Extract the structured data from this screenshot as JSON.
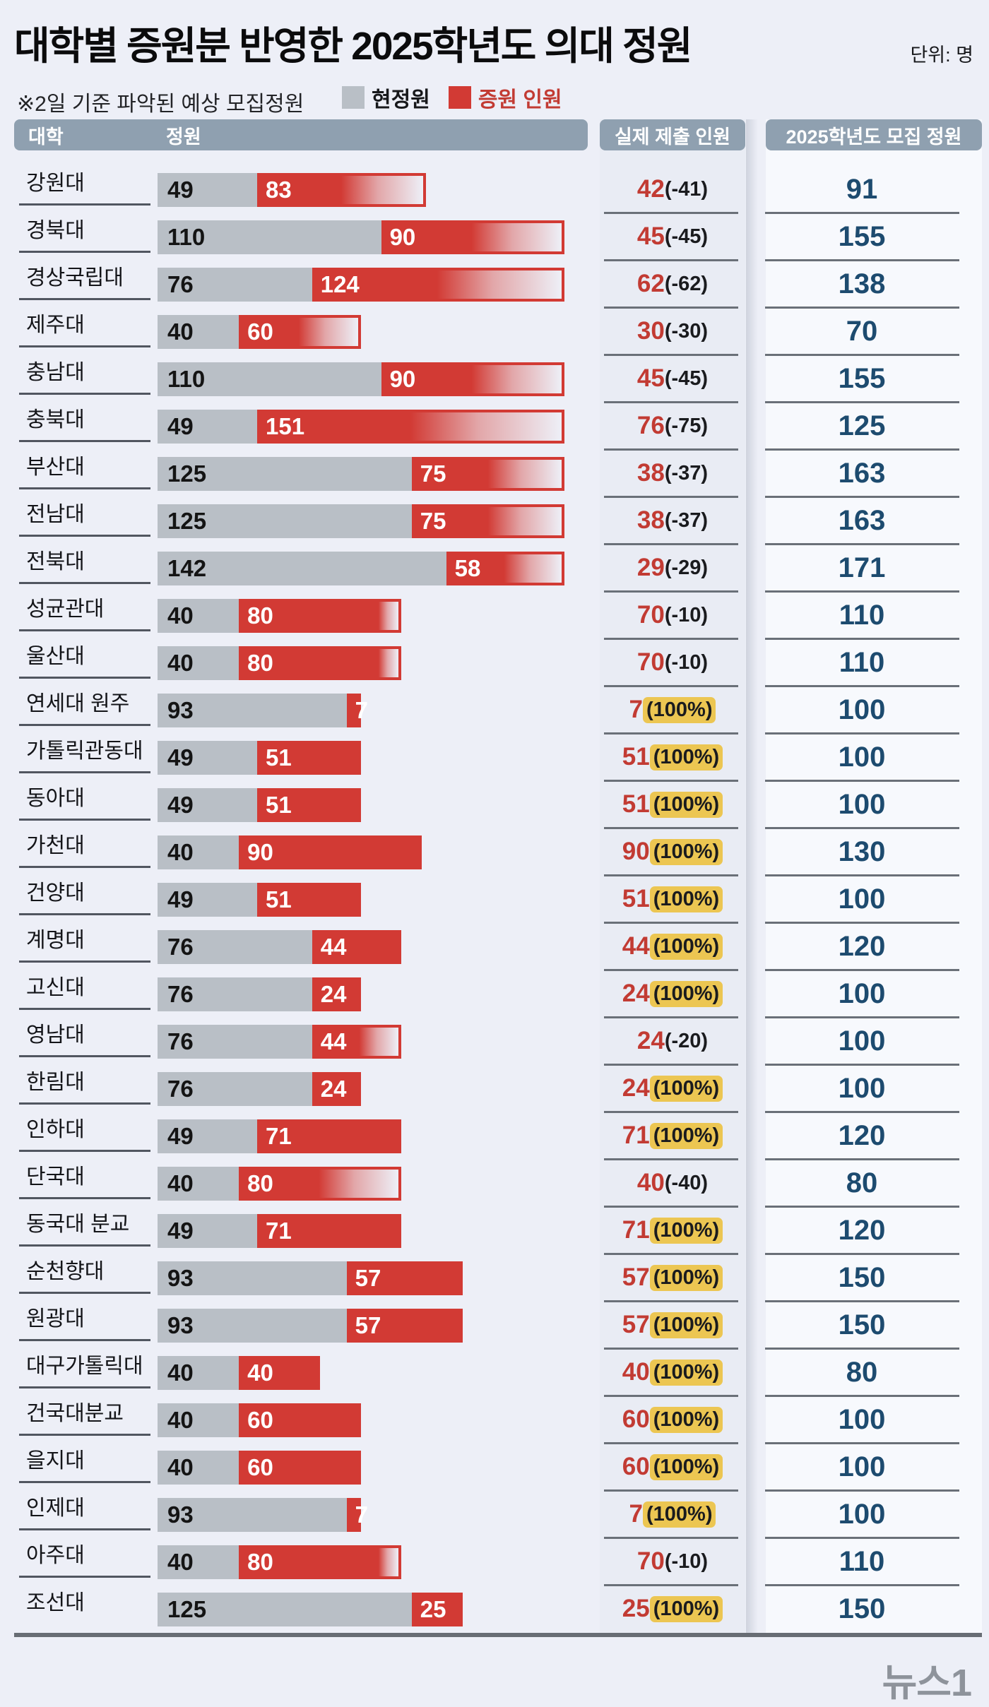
{
  "ui": {
    "title": "대학별 증원분 반영한 2025학년도 의대 정원",
    "unit_label": "단위: 명",
    "note": "※2일 기준 파악된 예상 모집정원",
    "legend": {
      "base_label": "현정원",
      "increase_label": "증원 인원"
    },
    "header": {
      "college": "대학",
      "quota": "정원",
      "submitted": "실제 제출 인원",
      "final": "2025학년도 모집 정원"
    },
    "footer_logo": "뉴스1"
  },
  "colors": {
    "background": "#edeff7",
    "header_band": "#8fa0b0",
    "bar_gray": "#b9bfc6",
    "bar_red": "#d23a34",
    "red_text": "#c23b33",
    "navy_number": "#1d4b6f",
    "highlight_yellow": "#ecc652"
  },
  "chart_data": {
    "type": "bar",
    "title": "대학별 증원분 반영한 2025학년도 의대 정원",
    "unit": "명",
    "legend": [
      "현정원",
      "증원 인원"
    ],
    "legend_position": "top",
    "x_max_units": 200,
    "categories": [
      "강원대",
      "경북대",
      "경상국립대",
      "제주대",
      "충남대",
      "충북대",
      "부산대",
      "전남대",
      "전북대",
      "성균관대",
      "울산대",
      "연세대 원주",
      "가톨릭관동대",
      "동아대",
      "가천대",
      "건양대",
      "계명대",
      "고신대",
      "영남대",
      "한림대",
      "인하대",
      "단국대",
      "동국대 분교",
      "순천향대",
      "원광대",
      "대구가톨릭대",
      "건국대분교",
      "을지대",
      "인제대",
      "아주대",
      "조선대"
    ],
    "series": [
      {
        "name": "현정원",
        "values": [
          49,
          110,
          76,
          40,
          110,
          49,
          125,
          125,
          142,
          40,
          40,
          93,
          49,
          49,
          40,
          49,
          76,
          76,
          76,
          76,
          49,
          40,
          49,
          93,
          93,
          40,
          40,
          40,
          93,
          40,
          125
        ]
      },
      {
        "name": "증원 인원",
        "values": [
          83,
          90,
          124,
          60,
          90,
          151,
          75,
          75,
          58,
          80,
          80,
          7,
          51,
          51,
          90,
          51,
          44,
          24,
          44,
          24,
          71,
          80,
          71,
          57,
          57,
          40,
          60,
          60,
          7,
          80,
          25
        ]
      },
      {
        "name": "실제 제출 인원",
        "values": [
          42,
          45,
          62,
          30,
          45,
          76,
          38,
          38,
          29,
          70,
          70,
          7,
          51,
          51,
          90,
          51,
          44,
          24,
          24,
          24,
          71,
          40,
          71,
          57,
          57,
          40,
          60,
          60,
          7,
          70,
          25
        ]
      },
      {
        "name": "2025학년도 모집 정원",
        "values": [
          91,
          155,
          138,
          70,
          155,
          125,
          163,
          163,
          171,
          110,
          110,
          100,
          100,
          100,
          130,
          100,
          120,
          100,
          100,
          100,
          120,
          80,
          120,
          150,
          150,
          80,
          100,
          100,
          100,
          110,
          150
        ]
      }
    ],
    "rows": [
      {
        "university": "강원대",
        "current_quota": 49,
        "increase": 83,
        "submitted": 42,
        "submitted_note": "(-41)",
        "full_pct": false,
        "final_2025": 91
      },
      {
        "university": "경북대",
        "current_quota": 110,
        "increase": 90,
        "submitted": 45,
        "submitted_note": "(-45)",
        "full_pct": false,
        "final_2025": 155
      },
      {
        "university": "경상국립대",
        "current_quota": 76,
        "increase": 124,
        "submitted": 62,
        "submitted_note": "(-62)",
        "full_pct": false,
        "final_2025": 138
      },
      {
        "university": "제주대",
        "current_quota": 40,
        "increase": 60,
        "submitted": 30,
        "submitted_note": "(-30)",
        "full_pct": false,
        "final_2025": 70
      },
      {
        "university": "충남대",
        "current_quota": 110,
        "increase": 90,
        "submitted": 45,
        "submitted_note": "(-45)",
        "full_pct": false,
        "final_2025": 155
      },
      {
        "university": "충북대",
        "current_quota": 49,
        "increase": 151,
        "submitted": 76,
        "submitted_note": "(-75)",
        "full_pct": false,
        "final_2025": 125
      },
      {
        "university": "부산대",
        "current_quota": 125,
        "increase": 75,
        "submitted": 38,
        "submitted_note": "(-37)",
        "full_pct": false,
        "final_2025": 163
      },
      {
        "university": "전남대",
        "current_quota": 125,
        "increase": 75,
        "submitted": 38,
        "submitted_note": "(-37)",
        "full_pct": false,
        "final_2025": 163
      },
      {
        "university": "전북대",
        "current_quota": 142,
        "increase": 58,
        "submitted": 29,
        "submitted_note": "(-29)",
        "full_pct": false,
        "final_2025": 171
      },
      {
        "university": "성균관대",
        "current_quota": 40,
        "increase": 80,
        "submitted": 70,
        "submitted_note": "(-10)",
        "full_pct": false,
        "final_2025": 110
      },
      {
        "university": "울산대",
        "current_quota": 40,
        "increase": 80,
        "submitted": 70,
        "submitted_note": "(-10)",
        "full_pct": false,
        "final_2025": 110
      },
      {
        "university": "연세대 원주",
        "current_quota": 93,
        "increase": 7,
        "submitted": 7,
        "submitted_note": "(100%)",
        "full_pct": true,
        "final_2025": 100
      },
      {
        "university": "가톨릭관동대",
        "current_quota": 49,
        "increase": 51,
        "submitted": 51,
        "submitted_note": "(100%)",
        "full_pct": true,
        "final_2025": 100
      },
      {
        "university": "동아대",
        "current_quota": 49,
        "increase": 51,
        "submitted": 51,
        "submitted_note": "(100%)",
        "full_pct": true,
        "final_2025": 100
      },
      {
        "university": "가천대",
        "current_quota": 40,
        "increase": 90,
        "submitted": 90,
        "submitted_note": "(100%)",
        "full_pct": true,
        "final_2025": 130
      },
      {
        "university": "건양대",
        "current_quota": 49,
        "increase": 51,
        "submitted": 51,
        "submitted_note": "(100%)",
        "full_pct": true,
        "final_2025": 100
      },
      {
        "university": "계명대",
        "current_quota": 76,
        "increase": 44,
        "submitted": 44,
        "submitted_note": "(100%)",
        "full_pct": true,
        "final_2025": 120
      },
      {
        "university": "고신대",
        "current_quota": 76,
        "increase": 24,
        "submitted": 24,
        "submitted_note": "(100%)",
        "full_pct": true,
        "final_2025": 100
      },
      {
        "university": "영남대",
        "current_quota": 76,
        "increase": 44,
        "submitted": 24,
        "submitted_note": "(-20)",
        "full_pct": false,
        "final_2025": 100
      },
      {
        "university": "한림대",
        "current_quota": 76,
        "increase": 24,
        "submitted": 24,
        "submitted_note": "(100%)",
        "full_pct": true,
        "final_2025": 100
      },
      {
        "university": "인하대",
        "current_quota": 49,
        "increase": 71,
        "submitted": 71,
        "submitted_note": "(100%)",
        "full_pct": true,
        "final_2025": 120
      },
      {
        "university": "단국대",
        "current_quota": 40,
        "increase": 80,
        "submitted": 40,
        "submitted_note": "(-40)",
        "full_pct": false,
        "final_2025": 80
      },
      {
        "university": "동국대 분교",
        "current_quota": 49,
        "increase": 71,
        "submitted": 71,
        "submitted_note": "(100%)",
        "full_pct": true,
        "final_2025": 120
      },
      {
        "university": "순천향대",
        "current_quota": 93,
        "increase": 57,
        "submitted": 57,
        "submitted_note": "(100%)",
        "full_pct": true,
        "final_2025": 150
      },
      {
        "university": "원광대",
        "current_quota": 93,
        "increase": 57,
        "submitted": 57,
        "submitted_note": "(100%)",
        "full_pct": true,
        "final_2025": 150
      },
      {
        "university": "대구가톨릭대",
        "current_quota": 40,
        "increase": 40,
        "submitted": 40,
        "submitted_note": "(100%)",
        "full_pct": true,
        "final_2025": 80
      },
      {
        "university": "건국대분교",
        "current_quota": 40,
        "increase": 60,
        "submitted": 60,
        "submitted_note": "(100%)",
        "full_pct": true,
        "final_2025": 100
      },
      {
        "university": "을지대",
        "current_quota": 40,
        "increase": 60,
        "submitted": 60,
        "submitted_note": "(100%)",
        "full_pct": true,
        "final_2025": 100
      },
      {
        "university": "인제대",
        "current_quota": 93,
        "increase": 7,
        "submitted": 7,
        "submitted_note": "(100%)",
        "full_pct": true,
        "final_2025": 100
      },
      {
        "university": "아주대",
        "current_quota": 40,
        "increase": 80,
        "submitted": 70,
        "submitted_note": "(-10)",
        "full_pct": false,
        "final_2025": 110
      },
      {
        "university": "조선대",
        "current_quota": 125,
        "increase": 25,
        "submitted": 25,
        "submitted_note": "(100%)",
        "full_pct": true,
        "final_2025": 150
      }
    ]
  }
}
